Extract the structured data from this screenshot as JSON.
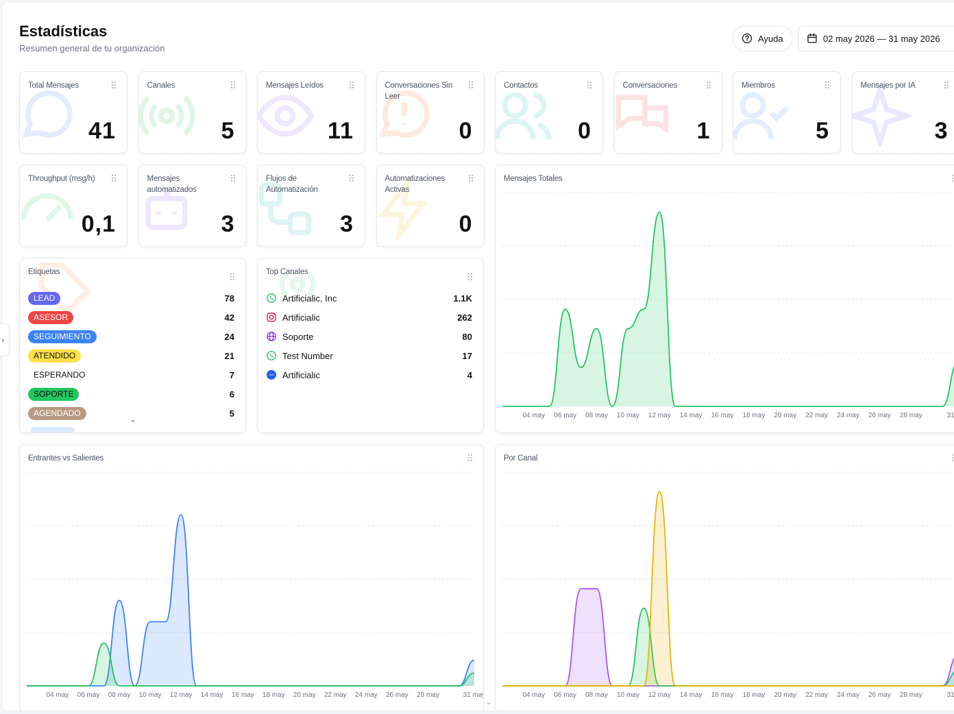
{
  "header": {
    "title": "Estadísticas",
    "subtitle": "Resumen general de tu organización",
    "help_label": "Ayuda",
    "date_range": "02 may 2026 — 31 may 2026"
  },
  "stat_cards": [
    {
      "label": "Total Mensajes",
      "value": "41",
      "icon": "chat-bubble-icon",
      "color": "#3b82f6"
    },
    {
      "label": "Canales",
      "value": "5",
      "icon": "broadcast-icon",
      "color": "#22c55e"
    },
    {
      "label": "Mensajes Leídos",
      "value": "11",
      "icon": "eye-icon",
      "color": "#8b5cf6"
    },
    {
      "label": "Conversaciones Sin Leer",
      "value": "0",
      "icon": "alert-chat-icon",
      "color": "#f97316"
    },
    {
      "label": "Contactos",
      "value": "0",
      "icon": "users-icon",
      "color": "#14b8a6"
    },
    {
      "label": "Conversaciones",
      "value": "1",
      "icon": "conversation-icon",
      "color": "#ef4444"
    },
    {
      "label": "Miembros",
      "value": "5",
      "icon": "user-check-icon",
      "color": "#3b82f6"
    },
    {
      "label": "Mensajes por IA",
      "value": "3",
      "icon": "sparkle-icon",
      "color": "#6366f1"
    },
    {
      "label": "Throughput (msg/h)",
      "value": "0,1",
      "icon": "gauge-icon",
      "color": "#22c55e"
    },
    {
      "label": "Mensajes automatizados",
      "value": "3",
      "icon": "robot-icon",
      "color": "#8b5cf6"
    },
    {
      "label": "Flujos de Automatización",
      "value": "3",
      "icon": "flow-icon",
      "color": "#14b8a6"
    },
    {
      "label": "Automatizaciones Activas",
      "value": "0",
      "icon": "lightning-icon",
      "color": "#eab308"
    }
  ],
  "tags_card": {
    "title": "Etiquetas",
    "items": [
      {
        "label": "LEAD",
        "count": "78",
        "color": "#6366f1",
        "text_color": "#ffffff"
      },
      {
        "label": "ASESOR",
        "count": "42",
        "color": "#ef4444",
        "text_color": "#ffffff"
      },
      {
        "label": "SEGUIMIENTO",
        "count": "24",
        "color": "#3b82f6",
        "text_color": "#ffffff"
      },
      {
        "label": "ATENDIDO",
        "count": "21",
        "color": "#fde047",
        "text_color": "#111111"
      },
      {
        "label": "ESPERANDO",
        "count": "7",
        "color": "#ffffff",
        "text_color": "#111111"
      },
      {
        "label": "SOPORTE",
        "count": "6",
        "color": "#22c55e",
        "text_color": "#111111"
      },
      {
        "label": "AGENDADO",
        "count": "5",
        "color": "#b89a83",
        "text_color": "#ffffff"
      }
    ]
  },
  "channels_card": {
    "title": "Top Canales",
    "items": [
      {
        "name": "Artificialic, Inc",
        "count": "1.1K",
        "icon": "whatsapp-icon",
        "color": "#22c55e"
      },
      {
        "name": "Artificialic",
        "count": "262",
        "icon": "instagram-icon",
        "color": "#e11d48"
      },
      {
        "name": "Soporte",
        "count": "80",
        "icon": "globe-icon",
        "color": "#7c3aed"
      },
      {
        "name": "Test Number",
        "count": "17",
        "icon": "whatsapp-icon",
        "color": "#22c55e"
      },
      {
        "name": "Artificialic",
        "count": "4",
        "icon": "messenger-icon",
        "color": "#2563eb"
      }
    ]
  },
  "chart_data": [
    {
      "type": "area",
      "title": "Mensajes Totales",
      "x": [
        "02 may",
        "03 may",
        "04 may",
        "05 may",
        "06 may",
        "07 may",
        "08 may",
        "09 may",
        "10 may",
        "11 may",
        "12 may",
        "13 may",
        "14 may",
        "15 may",
        "16 may",
        "17 may",
        "18 may",
        "19 may",
        "20 may",
        "21 may",
        "22 may",
        "23 may",
        "24 may",
        "25 may",
        "26 may",
        "27 may",
        "28 may",
        "29 may",
        "30 may",
        "31 may"
      ],
      "tick_labels": [
        "04 may",
        "06 may",
        "08 may",
        "10 may",
        "12 may",
        "14 may",
        "16 may",
        "18 may",
        "20 may",
        "22 may",
        "24 may",
        "26 may",
        "28 may",
        "31 may"
      ],
      "series": [
        {
          "values": [
            0,
            0,
            0,
            0,
            5,
            2,
            4,
            0,
            4,
            5,
            10,
            0,
            0,
            0,
            0,
            0,
            0,
            0,
            0,
            0,
            0,
            0,
            0,
            0,
            0,
            0,
            0,
            0,
            0,
            2.3
          ],
          "color": "#22c55e"
        }
      ],
      "ylim": [
        0,
        11
      ],
      "grid": true
    },
    {
      "type": "area",
      "title": "Entrantes vs Salientes",
      "x": [
        "02 may",
        "03 may",
        "04 may",
        "05 may",
        "06 may",
        "07 may",
        "08 may",
        "09 may",
        "10 may",
        "11 may",
        "12 may",
        "13 may",
        "14 may",
        "15 may",
        "16 may",
        "17 may",
        "18 may",
        "19 may",
        "20 may",
        "21 may",
        "22 may",
        "23 may",
        "24 may",
        "25 may",
        "26 may",
        "27 may",
        "28 may",
        "29 may",
        "30 may",
        "31 may"
      ],
      "tick_labels": [
        "04 may",
        "06 may",
        "08 may",
        "10 may",
        "12 may",
        "14 may",
        "16 may",
        "18 may",
        "20 may",
        "22 may",
        "24 may",
        "26 may",
        "28 may",
        "31 may"
      ],
      "series": [
        {
          "values": [
            0,
            0,
            0,
            0,
            0,
            0,
            4,
            0,
            3,
            3,
            8,
            0,
            0,
            0,
            0,
            0,
            0,
            0,
            0,
            0,
            0,
            0,
            0,
            0,
            0,
            0,
            0,
            0,
            0,
            1.2
          ],
          "color": "#3b82f6"
        },
        {
          "values": [
            0,
            0,
            0,
            0,
            0,
            2,
            0,
            0,
            0,
            0,
            0,
            0,
            0,
            0,
            0,
            0,
            0,
            0,
            0,
            0,
            0,
            0,
            0,
            0,
            0,
            0,
            0,
            0,
            0,
            0.6
          ],
          "color": "#22c55e"
        }
      ],
      "ylim": [
        0,
        10
      ],
      "grid": true
    },
    {
      "type": "area",
      "title": "Por Canal",
      "x": [
        "02 may",
        "03 may",
        "04 may",
        "05 may",
        "06 may",
        "07 may",
        "08 may",
        "09 may",
        "10 may",
        "11 may",
        "12 may",
        "13 may",
        "14 may",
        "15 may",
        "16 may",
        "17 may",
        "18 may",
        "19 may",
        "20 may",
        "21 may",
        "22 may",
        "23 may",
        "24 may",
        "25 may",
        "26 may",
        "27 may",
        "28 may",
        "29 may",
        "30 may",
        "31 may"
      ],
      "tick_labels": [
        "04 may",
        "06 may",
        "08 may",
        "10 may",
        "12 may",
        "14 may",
        "16 may",
        "18 may",
        "20 may",
        "22 may",
        "24 may",
        "26 may",
        "28 may",
        "31 may"
      ],
      "series": [
        {
          "values": [
            0,
            0,
            0,
            0,
            0,
            5,
            5,
            0,
            0,
            0,
            0,
            0,
            0,
            0,
            0,
            0,
            0,
            0,
            0,
            0,
            0,
            0,
            0,
            0,
            0,
            0,
            0,
            0,
            0,
            1.6
          ],
          "color": "#a855f7"
        },
        {
          "values": [
            0,
            0,
            0,
            0,
            0,
            0,
            0,
            0,
            0,
            4,
            0,
            0,
            0,
            0,
            0,
            0,
            0,
            0,
            0,
            0,
            0,
            0,
            0,
            0,
            0,
            0,
            0,
            0,
            0,
            0.8
          ],
          "color": "#22c55e"
        },
        {
          "values": [
            0,
            0,
            0,
            0,
            0,
            0,
            0,
            0,
            0,
            0,
            10,
            0,
            0,
            0,
            0,
            0,
            0,
            0,
            0,
            0,
            0,
            0,
            0,
            0,
            0,
            0,
            0,
            0,
            0,
            0
          ],
          "color": "#eab308"
        }
      ],
      "ylim": [
        0,
        11
      ],
      "grid": true
    }
  ]
}
